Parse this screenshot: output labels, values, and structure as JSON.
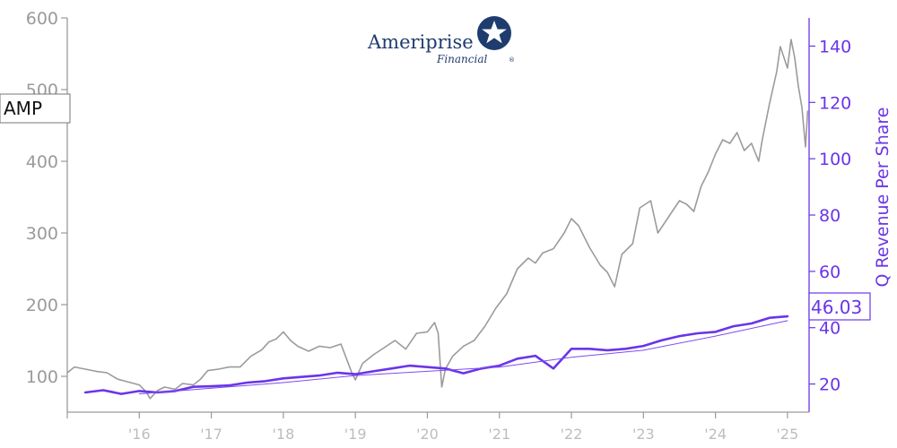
{
  "chart_data": {
    "type": "line",
    "ticker_label": "AMP",
    "last_value_label": "46.03",
    "y_right_label": "Q Revenue Per Share",
    "logo": {
      "name": "Ameriprise",
      "sub": "Financial",
      "registered": "®"
    },
    "colors": {
      "price": "#9b9b9b",
      "revenue": "#6a35e8",
      "trend": "#7d4df0"
    },
    "y_left": {
      "lim": [
        50,
        600
      ],
      "ticks": [
        "100",
        "200",
        "300",
        "400",
        "500",
        "600"
      ]
    },
    "y_right": {
      "lim": [
        10,
        150
      ],
      "ticks": [
        "20",
        "40",
        "60",
        "80",
        "100",
        "120",
        "140"
      ]
    },
    "x": {
      "lim": [
        2015.0,
        2025.3
      ],
      "ticks": [
        {
          "x": 2016,
          "label": "'16"
        },
        {
          "x": 2017,
          "label": "'17"
        },
        {
          "x": 2018,
          "label": "'18"
        },
        {
          "x": 2019,
          "label": "'19"
        },
        {
          "x": 2020,
          "label": "'20"
        },
        {
          "x": 2021,
          "label": "'21"
        },
        {
          "x": 2022,
          "label": "'22"
        },
        {
          "x": 2023,
          "label": "'23"
        },
        {
          "x": 2024,
          "label": "'24"
        },
        {
          "x": 2025,
          "label": "'25"
        }
      ]
    },
    "series": [
      {
        "name": "AMP",
        "axis": "left",
        "points": [
          [
            2015.0,
            105
          ],
          [
            2015.1,
            113
          ],
          [
            2015.25,
            110
          ],
          [
            2015.4,
            107
          ],
          [
            2015.55,
            105
          ],
          [
            2015.7,
            96
          ],
          [
            2015.85,
            92
          ],
          [
            2016.0,
            88
          ],
          [
            2016.1,
            78
          ],
          [
            2016.15,
            69
          ],
          [
            2016.25,
            80
          ],
          [
            2016.35,
            85
          ],
          [
            2016.5,
            82
          ],
          [
            2016.6,
            90
          ],
          [
            2016.75,
            88
          ],
          [
            2016.85,
            96
          ],
          [
            2016.95,
            108
          ],
          [
            2017.1,
            110
          ],
          [
            2017.25,
            113
          ],
          [
            2017.4,
            113
          ],
          [
            2017.55,
            128
          ],
          [
            2017.7,
            137
          ],
          [
            2017.8,
            148
          ],
          [
            2017.9,
            152
          ],
          [
            2018.0,
            162
          ],
          [
            2018.1,
            150
          ],
          [
            2018.2,
            142
          ],
          [
            2018.35,
            135
          ],
          [
            2018.5,
            142
          ],
          [
            2018.65,
            140
          ],
          [
            2018.8,
            145
          ],
          [
            2018.95,
            105
          ],
          [
            2019.0,
            95
          ],
          [
            2019.1,
            118
          ],
          [
            2019.25,
            130
          ],
          [
            2019.4,
            140
          ],
          [
            2019.55,
            150
          ],
          [
            2019.7,
            138
          ],
          [
            2019.85,
            160
          ],
          [
            2020.0,
            162
          ],
          [
            2020.1,
            175
          ],
          [
            2020.15,
            160
          ],
          [
            2020.2,
            85
          ],
          [
            2020.25,
            110
          ],
          [
            2020.35,
            128
          ],
          [
            2020.5,
            142
          ],
          [
            2020.65,
            150
          ],
          [
            2020.8,
            170
          ],
          [
            2020.95,
            195
          ],
          [
            2021.1,
            215
          ],
          [
            2021.25,
            250
          ],
          [
            2021.4,
            265
          ],
          [
            2021.5,
            258
          ],
          [
            2021.6,
            272
          ],
          [
            2021.75,
            278
          ],
          [
            2021.9,
            300
          ],
          [
            2022.0,
            320
          ],
          [
            2022.1,
            310
          ],
          [
            2022.25,
            280
          ],
          [
            2022.4,
            255
          ],
          [
            2022.5,
            245
          ],
          [
            2022.6,
            225
          ],
          [
            2022.7,
            270
          ],
          [
            2022.85,
            285
          ],
          [
            2022.95,
            335
          ],
          [
            2023.1,
            345
          ],
          [
            2023.2,
            300
          ],
          [
            2023.3,
            315
          ],
          [
            2023.4,
            330
          ],
          [
            2023.5,
            345
          ],
          [
            2023.6,
            340
          ],
          [
            2023.7,
            330
          ],
          [
            2023.8,
            365
          ],
          [
            2023.9,
            385
          ],
          [
            2024.0,
            410
          ],
          [
            2024.1,
            430
          ],
          [
            2024.2,
            425
          ],
          [
            2024.3,
            440
          ],
          [
            2024.4,
            415
          ],
          [
            2024.5,
            425
          ],
          [
            2024.6,
            400
          ],
          [
            2024.65,
            430
          ],
          [
            2024.75,
            480
          ],
          [
            2024.85,
            525
          ],
          [
            2024.9,
            560
          ],
          [
            2024.95,
            545
          ],
          [
            2025.0,
            530
          ],
          [
            2025.05,
            570
          ],
          [
            2025.1,
            545
          ],
          [
            2025.15,
            505
          ],
          [
            2025.2,
            475
          ],
          [
            2025.25,
            420
          ],
          [
            2025.28,
            470
          ]
        ]
      },
      {
        "name": "Q Revenue Per Share",
        "axis": "right",
        "points": [
          [
            2015.25,
            17
          ],
          [
            2015.5,
            17.8
          ],
          [
            2015.75,
            16.5
          ],
          [
            2016.0,
            17.5
          ],
          [
            2016.25,
            17
          ],
          [
            2016.5,
            17.5
          ],
          [
            2016.75,
            19
          ],
          [
            2017.0,
            19.2
          ],
          [
            2017.25,
            19.5
          ],
          [
            2017.5,
            20.5
          ],
          [
            2017.75,
            21
          ],
          [
            2018.0,
            22
          ],
          [
            2018.25,
            22.5
          ],
          [
            2018.5,
            23
          ],
          [
            2018.75,
            24
          ],
          [
            2019.0,
            23.5
          ],
          [
            2019.25,
            24.5
          ],
          [
            2019.5,
            25.5
          ],
          [
            2019.75,
            26.5
          ],
          [
            2020.0,
            26
          ],
          [
            2020.25,
            25.5
          ],
          [
            2020.5,
            23.8
          ],
          [
            2020.75,
            25.5
          ],
          [
            2021.0,
            26.5
          ],
          [
            2021.25,
            29
          ],
          [
            2021.5,
            30
          ],
          [
            2021.75,
            25.5
          ],
          [
            2022.0,
            32.5
          ],
          [
            2022.25,
            32.5
          ],
          [
            2022.5,
            32
          ],
          [
            2022.75,
            32.5
          ],
          [
            2023.0,
            33.5
          ],
          [
            2023.25,
            35.5
          ],
          [
            2023.5,
            37
          ],
          [
            2023.75,
            38
          ],
          [
            2024.0,
            38.5
          ],
          [
            2024.25,
            40.5
          ],
          [
            2024.5,
            41.5
          ],
          [
            2024.75,
            43.5
          ],
          [
            2025.0,
            44
          ]
        ]
      },
      {
        "name": "trend",
        "axis": "right",
        "points": [
          [
            2016.0,
            16.5
          ],
          [
            2017.0,
            18.5
          ],
          [
            2018.0,
            20.5
          ],
          [
            2019.0,
            23.0
          ],
          [
            2020.0,
            24.5
          ],
          [
            2021.0,
            26.0
          ],
          [
            2022.0,
            29.5
          ],
          [
            2023.0,
            32.0
          ],
          [
            2024.0,
            37.0
          ],
          [
            2025.0,
            42.5
          ]
        ]
      }
    ]
  }
}
